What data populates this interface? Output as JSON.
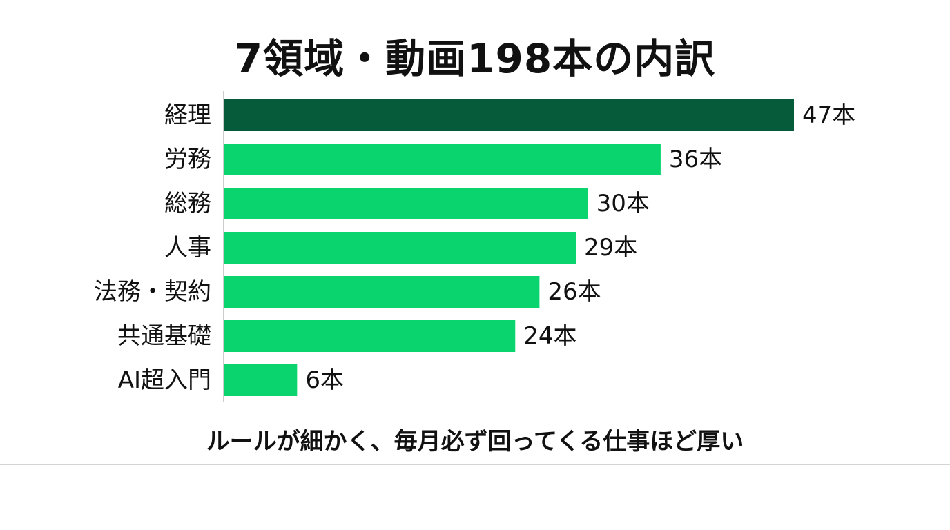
{
  "chart_data": {
    "type": "bar",
    "orientation": "horizontal",
    "title": "7領域・動画198本の内訳",
    "categories": [
      "経理",
      "労務",
      "総務",
      "人事",
      "法務・契約",
      "共通基礎",
      "AI超入門"
    ],
    "values": [
      47,
      36,
      30,
      29,
      26,
      24,
      6
    ],
    "value_labels": [
      "47本",
      "36本",
      "30本",
      "29本",
      "26本",
      "24本",
      "6本"
    ],
    "xlim": [
      0,
      47
    ],
    "grid": false,
    "highlight_index": 0,
    "colors": {
      "highlight": "#065c3a",
      "bar": "#0ad46e",
      "axis": "#cccccc"
    },
    "caption": "ルールが細かく、毎月必ず回ってくる仕事ほど厚い"
  }
}
